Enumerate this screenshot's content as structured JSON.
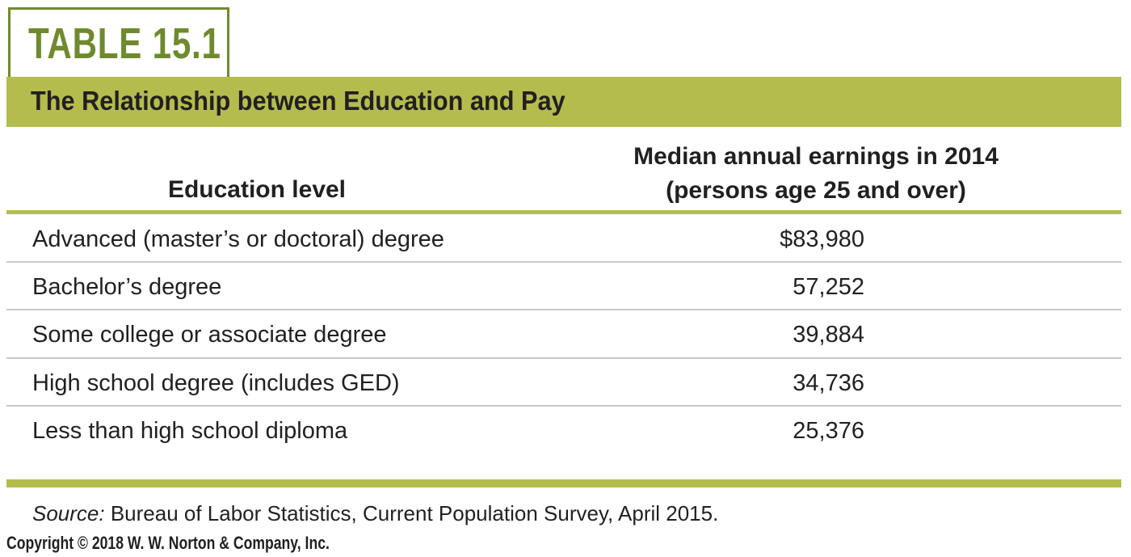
{
  "table": {
    "label": "TABLE 15.1",
    "title": "The Relationship between Education and Pay",
    "columns": {
      "education": "Education level",
      "earnings_line1": "Median annual earnings in 2014",
      "earnings_line2": "(persons age 25 and over)"
    },
    "rows": [
      {
        "education": "Advanced (master’s or doctoral) degree",
        "earnings": "$83,980"
      },
      {
        "education": "Bachelor’s degree",
        "earnings": "57,252"
      },
      {
        "education": "Some college or associate degree",
        "earnings": "39,884"
      },
      {
        "education": "High school degree (includes GED)",
        "earnings": "34,736"
      },
      {
        "education": "Less than high school diploma",
        "earnings": "25,376"
      }
    ],
    "source_label": "Source:",
    "source_text": " Bureau of Labor Statistics, Current Population Survey, April 2015."
  },
  "copyright": "Copyright © 2018 W. W. Norton & Company, Inc.",
  "colors": {
    "accent_green": "#6f8a2e",
    "band_green": "#b4bc4e",
    "rule_gray": "#c8c8c8",
    "text": "#231f20"
  }
}
